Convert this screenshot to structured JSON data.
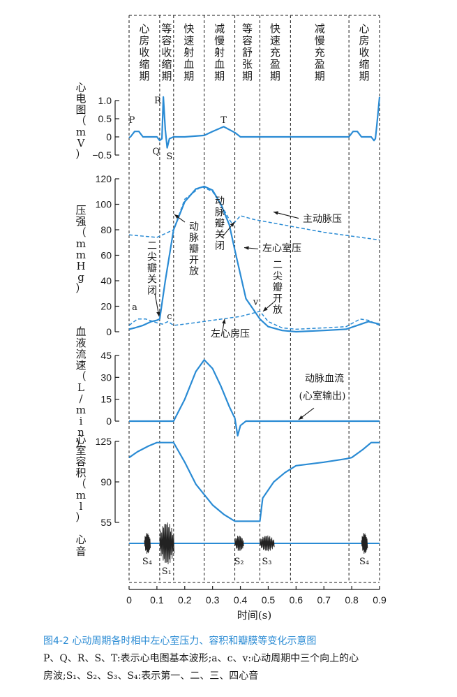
{
  "figure": {
    "number": "图4-2",
    "title": "心动周期各时相中左心室压力、容积和瓣膜等变化示意图",
    "note_line1": "P、Q、R、S、T:表示心电图基本波形;a、c、v:心动周期中三个向上的心",
    "note_line2": "房波;S₁、S₂、S₃、S₄:表示第一、二、三、四心音"
  },
  "colors": {
    "curve": "#2a8bd4",
    "text": "#1a1a1a",
    "axis": "#1a1a1a"
  },
  "phases": [
    {
      "label": "心房收缩期",
      "start": 0.0,
      "end": 0.11
    },
    {
      "label": "等容收缩期",
      "start": 0.11,
      "end": 0.16
    },
    {
      "label": "快速射血期",
      "start": 0.16,
      "end": 0.27
    },
    {
      "label": "减慢射血期",
      "start": 0.27,
      "end": 0.38
    },
    {
      "label": "等容舒张期",
      "start": 0.38,
      "end": 0.47
    },
    {
      "label": "快速充盈期",
      "start": 0.47,
      "end": 0.58
    },
    {
      "label": "减慢充盈期",
      "start": 0.58,
      "end": 0.79
    },
    {
      "label": "心房收缩期",
      "start": 0.79,
      "end": 0.9
    }
  ],
  "x_axis": {
    "label": "时间(s)",
    "ticks": [
      0,
      0.1,
      0.2,
      0.3,
      0.4,
      0.5,
      0.6,
      0.7,
      0.8,
      0.9
    ],
    "tick_labels": [
      "0",
      "0.1",
      "0.2",
      "0.3",
      "0.4",
      "0.5",
      "0.6",
      "0.7",
      "0.8",
      "0.9"
    ]
  },
  "chart_data": [
    {
      "type": "line",
      "ylabel": "心电图（mV）",
      "yticks": [
        1.0,
        0.5,
        0,
        -0.5
      ],
      "ytick_labels": [
        "1.0",
        "0.5",
        "0",
        "−0.5"
      ],
      "ylim": [
        -0.5,
        1.0
      ],
      "wave_labels": [
        "P",
        "Q",
        "R",
        "S",
        "T"
      ],
      "series": [
        {
          "style": "solid",
          "x": [
            0,
            0.005,
            0.02,
            0.035,
            0.05,
            0.1,
            0.11,
            0.118,
            0.123,
            0.13,
            0.137,
            0.145,
            0.16,
            0.2,
            0.27,
            0.3,
            0.34,
            0.38,
            0.4,
            0.78,
            0.79,
            0.805,
            0.82,
            0.835,
            0.87,
            0.88,
            0.885,
            0.89,
            0.9
          ],
          "y": [
            -0.02,
            0.0,
            0.15,
            0.15,
            0.0,
            0.0,
            -0.1,
            -0.05,
            1.1,
            0.2,
            -0.3,
            -0.05,
            0.0,
            0.0,
            0.04,
            0.15,
            0.28,
            0.12,
            0.0,
            0.0,
            0.0,
            0.15,
            0.15,
            0.0,
            0.0,
            -0.1,
            -0.05,
            0.3,
            1.1
          ]
        }
      ]
    },
    {
      "type": "line",
      "ylabel": "压强（mmHg）",
      "yticks": [
        0,
        20,
        40,
        60,
        80,
        100,
        120
      ],
      "ytick_labels": [
        "0",
        "20",
        "40",
        "60",
        "80",
        "100",
        "120"
      ],
      "ylim": [
        0,
        120
      ],
      "annotations": [
        "主动脉压",
        "动脉瓣开放",
        "动脉瓣关闭",
        "左心室压",
        "二尖瓣关闭",
        "二尖瓣开放",
        "左心房压",
        "a",
        "c",
        "v"
      ],
      "series": [
        {
          "name": "主动脉压",
          "style": "dashed",
          "x": [
            0,
            0.1,
            0.16,
            0.2,
            0.26,
            0.3,
            0.33,
            0.36,
            0.37,
            0.38,
            0.4,
            0.45,
            0.55,
            0.7,
            0.9
          ],
          "y": [
            76,
            74,
            80,
            104,
            114,
            110,
            100,
            88,
            85,
            86,
            91,
            88,
            84,
            78,
            72
          ]
        },
        {
          "name": "左心室压",
          "style": "solid",
          "x": [
            0,
            0.02,
            0.05,
            0.08,
            0.1,
            0.11,
            0.13,
            0.16,
            0.2,
            0.24,
            0.27,
            0.3,
            0.33,
            0.36,
            0.38,
            0.42,
            0.47,
            0.5,
            0.55,
            0.6,
            0.7,
            0.78,
            0.82,
            0.86,
            0.9
          ],
          "y": [
            2,
            3,
            5,
            8,
            9,
            10,
            40,
            80,
            102,
            112,
            114,
            111,
            100,
            84,
            64,
            26,
            10,
            4,
            1,
            0,
            1,
            2,
            5,
            8,
            6
          ]
        },
        {
          "name": "左心房压",
          "style": "dashed",
          "x": [
            0,
            0.03,
            0.06,
            0.1,
            0.12,
            0.14,
            0.16,
            0.2,
            0.3,
            0.4,
            0.47,
            0.5,
            0.55,
            0.6,
            0.7,
            0.78,
            0.83,
            0.86,
            0.9
          ],
          "y": [
            5,
            10,
            10,
            7,
            6,
            8,
            5,
            6,
            9,
            12,
            16,
            8,
            3,
            2,
            3,
            4,
            10,
            9,
            5
          ]
        }
      ]
    },
    {
      "type": "line",
      "ylabel": "血液流速（L/min）",
      "yticks": [
        0,
        15,
        30,
        45
      ],
      "ytick_labels": [
        "0",
        "15",
        "30",
        "45"
      ],
      "ylim": [
        0,
        45
      ],
      "annotations": [
        "动脉血流",
        "(心室输出)"
      ],
      "series": [
        {
          "name": "动脉血流",
          "style": "solid",
          "x": [
            0,
            0.16,
            0.2,
            0.24,
            0.27,
            0.3,
            0.33,
            0.36,
            0.38,
            0.39,
            0.4,
            0.42,
            0.9
          ],
          "y": [
            0,
            0,
            15,
            34,
            42,
            36,
            24,
            10,
            2,
            -10,
            -3,
            0,
            0
          ]
        }
      ]
    },
    {
      "type": "line",
      "ylabel": "心室容积（ml）",
      "yticks": [
        125,
        90,
        55
      ],
      "ytick_labels": [
        "125",
        "90",
        "55"
      ],
      "ylim": [
        55,
        125
      ],
      "series": [
        {
          "style": "solid",
          "x": [
            0,
            0.03,
            0.07,
            0.1,
            0.11,
            0.16,
            0.2,
            0.24,
            0.27,
            0.3,
            0.34,
            0.38,
            0.4,
            0.47,
            0.48,
            0.52,
            0.56,
            0.6,
            0.7,
            0.78,
            0.8,
            0.84,
            0.87,
            0.9
          ],
          "y": [
            111,
            116,
            121,
            124,
            124,
            124,
            107,
            88,
            79,
            70,
            62,
            56,
            56,
            56,
            76,
            90,
            98,
            104,
            107,
            110,
            111,
            118,
            124,
            124
          ]
        }
      ]
    },
    {
      "type": "line",
      "ylabel": "心音",
      "sound_labels": [
        "S₄",
        "S₁",
        "S₂",
        "S₃",
        "S₄"
      ],
      "bursts": [
        {
          "label": "S₄",
          "start": 0.055,
          "end": 0.075
        },
        {
          "label": "S₁",
          "start": 0.11,
          "end": 0.16
        },
        {
          "label": "S₂",
          "start": 0.38,
          "end": 0.41
        },
        {
          "label": "S₃",
          "start": 0.47,
          "end": 0.52
        },
        {
          "label": "S₄",
          "start": 0.835,
          "end": 0.855
        }
      ]
    }
  ]
}
